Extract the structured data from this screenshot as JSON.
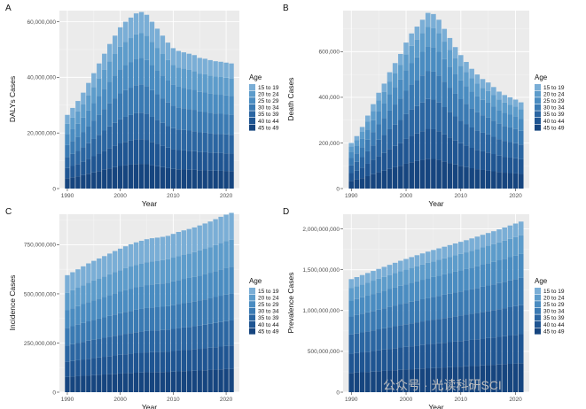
{
  "figure": {
    "watermark": "公众号 · 光读科研SCI"
  },
  "chart_data": [
    {
      "type": "bar",
      "stacked": true,
      "panel": "A",
      "xlabel": "Year",
      "ylabel": "DALYs Cases",
      "xlim": [
        1988.5,
        2022.5
      ],
      "ylim": [
        0,
        64000000
      ],
      "xticks": [
        1990,
        2000,
        2010,
        2020
      ],
      "yticks": [
        0,
        20000000,
        40000000,
        60000000
      ],
      "ytick_labels": [
        "0",
        "20,000,000",
        "40,000,000",
        "60,000,000"
      ],
      "x": [
        1990,
        1991,
        1992,
        1993,
        1994,
        1995,
        1996,
        1997,
        1998,
        1999,
        2000,
        2001,
        2002,
        2003,
        2004,
        2005,
        2006,
        2007,
        2008,
        2009,
        2010,
        2011,
        2012,
        2013,
        2014,
        2015,
        2016,
        2017,
        2018,
        2019,
        2020,
        2021
      ],
      "totals": [
        26500000,
        29000000,
        31500000,
        34500000,
        38000000,
        41500000,
        45000000,
        48500000,
        52000000,
        55000000,
        58000000,
        60000000,
        61500000,
        63000000,
        63500000,
        62500000,
        60000000,
        57500000,
        55000000,
        52500000,
        50500000,
        49500000,
        49000000,
        48500000,
        48000000,
        47000000,
        46700000,
        46200000,
        45800000,
        45600000,
        45300000,
        45000000
      ],
      "shares": [
        0.12,
        0.14,
        0.15,
        0.16,
        0.15,
        0.14,
        0.14
      ],
      "legend": {
        "title": "Age",
        "labels": [
          "15 to 19",
          "20 to 24",
          "25 to 29",
          "30 to 34",
          "35 to 39",
          "40 to 44",
          "45 to 49"
        ]
      }
    },
    {
      "type": "bar",
      "stacked": true,
      "panel": "B",
      "xlabel": "Year",
      "ylabel": "Death Cases",
      "xlim": [
        1988.5,
        2022.5
      ],
      "ylim": [
        0,
        780000
      ],
      "xticks": [
        1990,
        2000,
        2010,
        2020
      ],
      "yticks": [
        0,
        200000,
        400000,
        600000
      ],
      "ytick_labels": [
        "0",
        "200,000",
        "400,000",
        "600,000"
      ],
      "x": [
        1990,
        1991,
        1992,
        1993,
        1994,
        1995,
        1996,
        1997,
        1998,
        1999,
        2000,
        2001,
        2002,
        2003,
        2004,
        2005,
        2006,
        2007,
        2008,
        2009,
        2010,
        2011,
        2012,
        2013,
        2014,
        2015,
        2016,
        2017,
        2018,
        2019,
        2020,
        2021
      ],
      "totals": [
        200000,
        230000,
        270000,
        320000,
        370000,
        420000,
        460000,
        510000,
        550000,
        590000,
        640000,
        680000,
        710000,
        740000,
        770000,
        765000,
        740000,
        700000,
        660000,
        620000,
        585000,
        555000,
        525000,
        500000,
        480000,
        465000,
        445000,
        425000,
        410000,
        400000,
        390000,
        378000
      ],
      "shares": [
        0.08,
        0.11,
        0.14,
        0.16,
        0.17,
        0.17,
        0.17
      ],
      "legend": {
        "title": "Age",
        "labels": [
          "15 to 19",
          "20 to 24",
          "25 to 29",
          "30 to 34",
          "35 to 39",
          "40 to 44",
          "45 to 49"
        ]
      }
    },
    {
      "type": "bar",
      "stacked": true,
      "panel": "C",
      "xlabel": "Year",
      "ylabel": "Incidence Cases",
      "xlim": [
        1988.5,
        2022.5
      ],
      "ylim": [
        0,
        905000000
      ],
      "xticks": [
        1990,
        2000,
        2010,
        2020
      ],
      "yticks": [
        0,
        250000000,
        500000000,
        750000000
      ],
      "ytick_labels": [
        "0",
        "250,000,000",
        "500,000,000",
        "750,000,000"
      ],
      "x": [
        1990,
        1991,
        1992,
        1993,
        1994,
        1995,
        1996,
        1997,
        1998,
        1999,
        2000,
        2001,
        2002,
        2003,
        2004,
        2005,
        2006,
        2007,
        2008,
        2009,
        2010,
        2011,
        2012,
        2013,
        2014,
        2015,
        2016,
        2017,
        2018,
        2019,
        2020,
        2021
      ],
      "totals": [
        595000000,
        610000000,
        625000000,
        640000000,
        655000000,
        668000000,
        680000000,
        692000000,
        705000000,
        718000000,
        730000000,
        742000000,
        752000000,
        762000000,
        770000000,
        778000000,
        783000000,
        786000000,
        790000000,
        795000000,
        805000000,
        815000000,
        823000000,
        830000000,
        838000000,
        848000000,
        858000000,
        868000000,
        880000000,
        892000000,
        903000000,
        912000000
      ],
      "shares": [
        0.15,
        0.15,
        0.15,
        0.15,
        0.14,
        0.13,
        0.13
      ],
      "legend": {
        "title": "Age",
        "labels": [
          "15 to 19",
          "20 to 24",
          "25 to 29",
          "30 to 34",
          "35 to 39",
          "40 to 44",
          "45 to 49"
        ]
      }
    },
    {
      "type": "bar",
      "stacked": true,
      "panel": "D",
      "xlabel": "Year",
      "ylabel": "Prevalence Cases",
      "xlim": [
        1988.5,
        2022.5
      ],
      "ylim": [
        0,
        2180000000
      ],
      "xticks": [
        1990,
        2000,
        2010,
        2020
      ],
      "yticks": [
        0,
        500000000,
        1000000000,
        1500000000,
        2000000000
      ],
      "ytick_labels": [
        "0",
        "500,000,000",
        "1,000,000,000",
        "1,500,000,000",
        "2,000,000,000"
      ],
      "x": [
        1990,
        1991,
        1992,
        1993,
        1994,
        1995,
        1996,
        1997,
        1998,
        1999,
        2000,
        2001,
        2002,
        2003,
        2004,
        2005,
        2006,
        2007,
        2008,
        2009,
        2010,
        2011,
        2012,
        2013,
        2014,
        2015,
        2016,
        2017,
        2018,
        2019,
        2020,
        2021
      ],
      "totals": [
        1385000000,
        1410000000,
        1435000000,
        1460000000,
        1485000000,
        1510000000,
        1535000000,
        1560000000,
        1585000000,
        1610000000,
        1632000000,
        1655000000,
        1678000000,
        1700000000,
        1722000000,
        1742000000,
        1762000000,
        1782000000,
        1802000000,
        1822000000,
        1842000000,
        1862000000,
        1884000000,
        1906000000,
        1928000000,
        1950000000,
        1972000000,
        1995000000,
        2018000000,
        2042000000,
        2066000000,
        2090000000
      ],
      "shares": [
        0.08,
        0.11,
        0.14,
        0.16,
        0.17,
        0.17,
        0.17
      ],
      "legend": {
        "title": "Age",
        "labels": [
          "15 to 19",
          "20 to 24",
          "25 to 29",
          "30 to 34",
          "35 to 39",
          "40 to 44",
          "45 to 49"
        ]
      }
    }
  ],
  "colors": {
    "age_groups": [
      "#7aaed6",
      "#5d9ccb",
      "#4a8cc1",
      "#3a7ab3",
      "#2b66a2",
      "#1f5592",
      "#16457f"
    ],
    "panel_bg": "#ebebeb",
    "grid": "#ffffff"
  }
}
